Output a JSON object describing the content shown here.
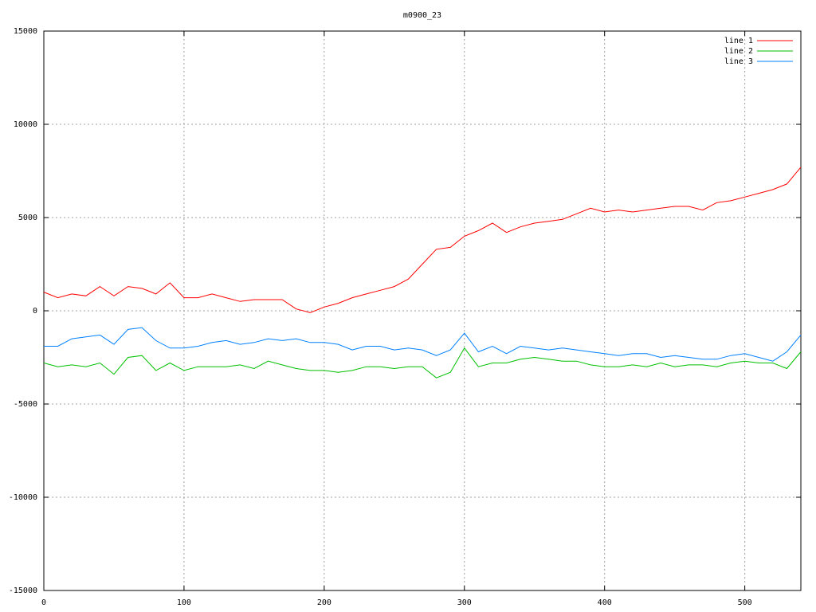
{
  "chart_data": {
    "type": "line",
    "title": "m0900_23",
    "x": [
      0,
      10,
      20,
      30,
      40,
      50,
      60,
      70,
      80,
      90,
      100,
      110,
      120,
      130,
      140,
      150,
      160,
      170,
      180,
      190,
      200,
      210,
      220,
      230,
      240,
      250,
      260,
      270,
      280,
      290,
      300,
      310,
      320,
      330,
      340,
      350,
      360,
      370,
      380,
      390,
      400,
      410,
      420,
      430,
      440,
      450,
      460,
      470,
      480,
      490,
      500,
      510,
      520,
      530,
      540
    ],
    "series": [
      {
        "name": "line 1",
        "color": "#ff0000",
        "values": [
          1000,
          700,
          900,
          800,
          1300,
          800,
          1300,
          1200,
          900,
          1500,
          700,
          700,
          900,
          700,
          500,
          600,
          600,
          600,
          100,
          -100,
          200,
          400,
          700,
          900,
          1100,
          1300,
          1700,
          2500,
          3300,
          3400,
          4000,
          4300,
          4700,
          4200,
          4500,
          4700,
          4800,
          4900,
          5200,
          5500,
          5300,
          5400,
          5300,
          5400,
          5500,
          5600,
          5600,
          5400,
          5800,
          5900,
          6100,
          6300,
          6500,
          6800,
          7700
        ]
      },
      {
        "name": "line 2",
        "color": "#00c000",
        "values": [
          -2800,
          -3000,
          -2900,
          -3000,
          -2800,
          -3400,
          -2500,
          -2400,
          -3200,
          -2800,
          -3200,
          -3000,
          -3000,
          -3000,
          -2900,
          -3100,
          -2700,
          -2900,
          -3100,
          -3200,
          -3200,
          -3300,
          -3200,
          -3000,
          -3000,
          -3100,
          -3000,
          -3000,
          -3600,
          -3300,
          -2000,
          -3000,
          -2800,
          -2800,
          -2600,
          -2500,
          -2600,
          -2700,
          -2700,
          -2900,
          -3000,
          -3000,
          -2900,
          -3000,
          -2800,
          -3000,
          -2900,
          -2900,
          -3000,
          -2800,
          -2700,
          -2800,
          -2800,
          -3100,
          -2200
        ]
      },
      {
        "name": "line 3",
        "color": "#0080ff",
        "values": [
          -1900,
          -1900,
          -1500,
          -1400,
          -1300,
          -1800,
          -1000,
          -900,
          -1600,
          -2000,
          -2000,
          -1900,
          -1700,
          -1600,
          -1800,
          -1700,
          -1500,
          -1600,
          -1500,
          -1700,
          -1700,
          -1800,
          -2100,
          -1900,
          -1900,
          -2100,
          -2000,
          -2100,
          -2400,
          -2100,
          -1200,
          -2200,
          -1900,
          -2300,
          -1900,
          -2000,
          -2100,
          -2000,
          -2100,
          -2200,
          -2300,
          -2400,
          -2300,
          -2300,
          -2500,
          -2400,
          -2500,
          -2600,
          -2600,
          -2400,
          -2300,
          -2500,
          -2700,
          -2200,
          -1300
        ]
      }
    ],
    "xlim": [
      0,
      540
    ],
    "xticks": [
      0,
      100,
      200,
      300,
      400,
      500
    ],
    "ylim": [
      -15000,
      15000
    ],
    "yticks": [
      -15000,
      -10000,
      -5000,
      0,
      5000,
      10000,
      15000
    ],
    "grid": true,
    "legend": "top-right"
  }
}
